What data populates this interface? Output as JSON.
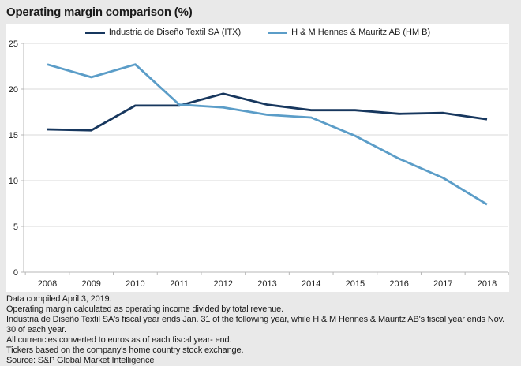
{
  "header": {
    "title": "Operating margin comparison (%)"
  },
  "chart_data": {
    "type": "line",
    "title": "Operating margin comparison (%)",
    "categories": [
      "2008",
      "2009",
      "2010",
      "2011",
      "2012",
      "2013",
      "2014",
      "2015",
      "2016",
      "2017",
      "2018"
    ],
    "series": [
      {
        "name": "Industria de Diseño Textil SA (ITX)",
        "color": "#17375e",
        "values": [
          15.6,
          15.5,
          18.2,
          18.2,
          19.5,
          18.3,
          17.7,
          17.7,
          17.3,
          17.4,
          16.7
        ]
      },
      {
        "name": "H & M Hennes & Mauritz AB (HM B)",
        "color": "#5b9dc8",
        "values": [
          22.7,
          21.3,
          22.7,
          18.3,
          18.0,
          17.2,
          16.9,
          14.9,
          12.4,
          10.3,
          7.4
        ]
      }
    ],
    "xlabel": "",
    "ylabel": "",
    "ylim": [
      0,
      25
    ],
    "yticks": [
      0,
      5,
      10,
      15,
      20,
      25
    ],
    "grid": "horizontal",
    "legend_position": "top-center"
  },
  "footer": {
    "lines": [
      "Data compiled April 3, 2019.",
      "Operating margin calculated as operating income divided by total revenue.",
      "Industria de Diseño Textil SA's fiscal year ends Jan. 31 of the following year, while H & M Hennes & Mauritz AB's fiscal year ends Nov. 30 of each year.",
      "All currencies converted to euros as of each fiscal year- end.",
      "Tickers based on the company's home country stock exchange.",
      "Source: S&P Global Market Intelligence"
    ]
  },
  "colors": {
    "page_background": "#e9e9e9",
    "panel_background": "#ffffff",
    "gridline": "#d9d9d9",
    "axis": "#b7b7b7",
    "itx_line": "#17375e",
    "hm_line": "#5b9dc8"
  }
}
